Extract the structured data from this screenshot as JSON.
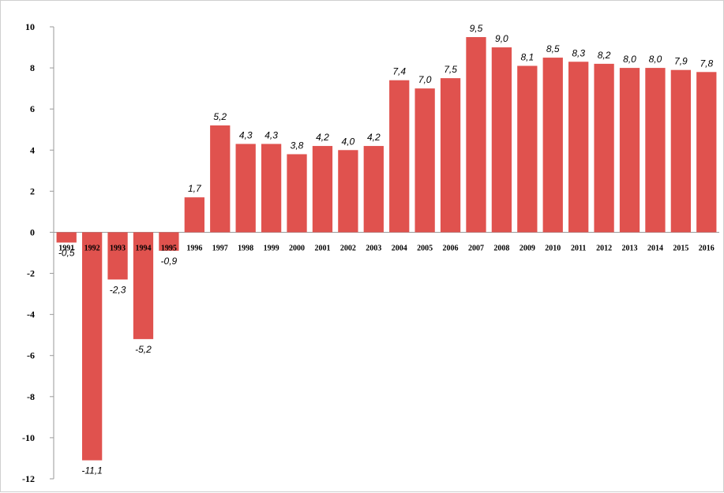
{
  "chart_data": {
    "type": "bar",
    "categories": [
      "1991",
      "1992",
      "1993",
      "1994",
      "1995",
      "1996",
      "1997",
      "1998",
      "1999",
      "2000",
      "2001",
      "2002",
      "2003",
      "2004",
      "2005",
      "2006",
      "2007",
      "2008",
      "2009",
      "2010",
      "2011",
      "2012",
      "2013",
      "2014",
      "2015",
      "2016"
    ],
    "values": [
      -0.5,
      -11.1,
      -2.3,
      -5.2,
      -0.9,
      1.7,
      5.2,
      4.3,
      4.3,
      3.8,
      4.2,
      4.0,
      4.2,
      7.4,
      7.0,
      7.5,
      9.5,
      9.0,
      8.1,
      8.5,
      8.3,
      8.2,
      8.0,
      8.0,
      7.9,
      7.8
    ],
    "data_labels": [
      "-0,5",
      "-11,1",
      "-2,3",
      "-5,2",
      "-0,9",
      "1,7",
      "5,2",
      "4,3",
      "4,3",
      "3,8",
      "4,2",
      "4,0",
      "4,2",
      "7,4",
      "7,0",
      "7,5",
      "9,5",
      "9,0",
      "8,1",
      "8,5",
      "8,3",
      "8,2",
      "8,0",
      "8,0",
      "7,9",
      "7,8"
    ],
    "yticks": [
      10,
      8,
      6,
      4,
      2,
      0,
      -2,
      -4,
      -6,
      -8,
      -10,
      -12
    ],
    "ylim": [
      -12,
      10
    ],
    "title": "",
    "xlabel": "",
    "ylabel": "",
    "bar_color": "#e0524e",
    "grid": false,
    "legend": "none"
  }
}
